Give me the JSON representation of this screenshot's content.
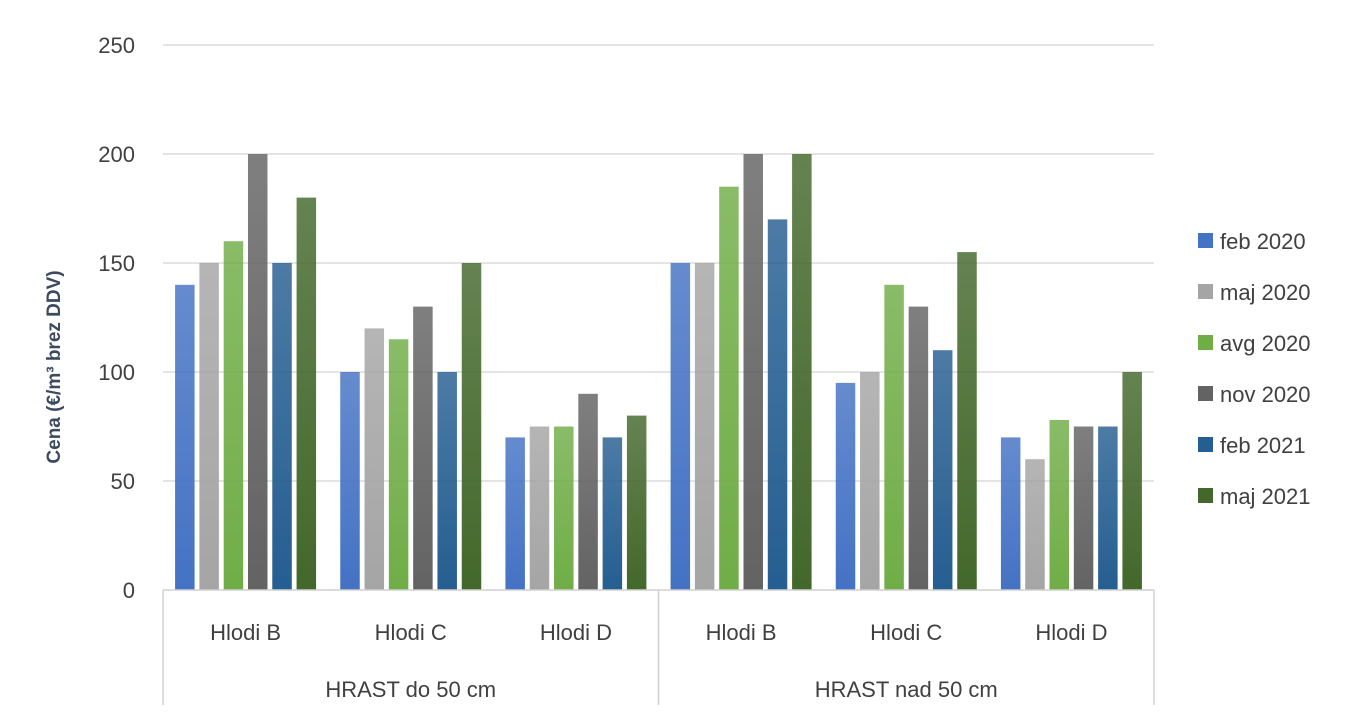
{
  "chart_data": {
    "type": "bar",
    "title": "",
    "xlabel": "",
    "ylabel": "Cena (€/m³ brez DDV)",
    "ylim": [
      0,
      250
    ],
    "yticks": [
      0,
      50,
      100,
      150,
      200,
      250
    ],
    "grid": true,
    "legend_position": "right",
    "groups": [
      {
        "label": "HRAST do 50 cm",
        "categories": [
          "Hlodi B",
          "Hlodi C",
          "Hlodi D"
        ]
      },
      {
        "label": "HRAST nad 50 cm",
        "categories": [
          "Hlodi B",
          "Hlodi C",
          "Hlodi D"
        ]
      }
    ],
    "series": [
      {
        "name": "feb 2020",
        "color": "#4472c4",
        "values": [
          140,
          100,
          70,
          150,
          95,
          70
        ]
      },
      {
        "name": "maj 2020",
        "color": "#a5a5a5",
        "values": [
          150,
          120,
          75,
          150,
          100,
          60
        ]
      },
      {
        "name": "avg 2020",
        "color": "#70ad47",
        "values": [
          160,
          115,
          75,
          185,
          140,
          78
        ]
      },
      {
        "name": "nov 2020",
        "color": "#636363",
        "values": [
          200,
          130,
          90,
          200,
          130,
          75
        ]
      },
      {
        "name": "feb 2021",
        "color": "#255e91",
        "values": [
          150,
          100,
          70,
          170,
          110,
          75
        ]
      },
      {
        "name": "maj 2021",
        "color": "#43682b",
        "values": [
          180,
          150,
          80,
          200,
          155,
          100
        ]
      }
    ]
  }
}
